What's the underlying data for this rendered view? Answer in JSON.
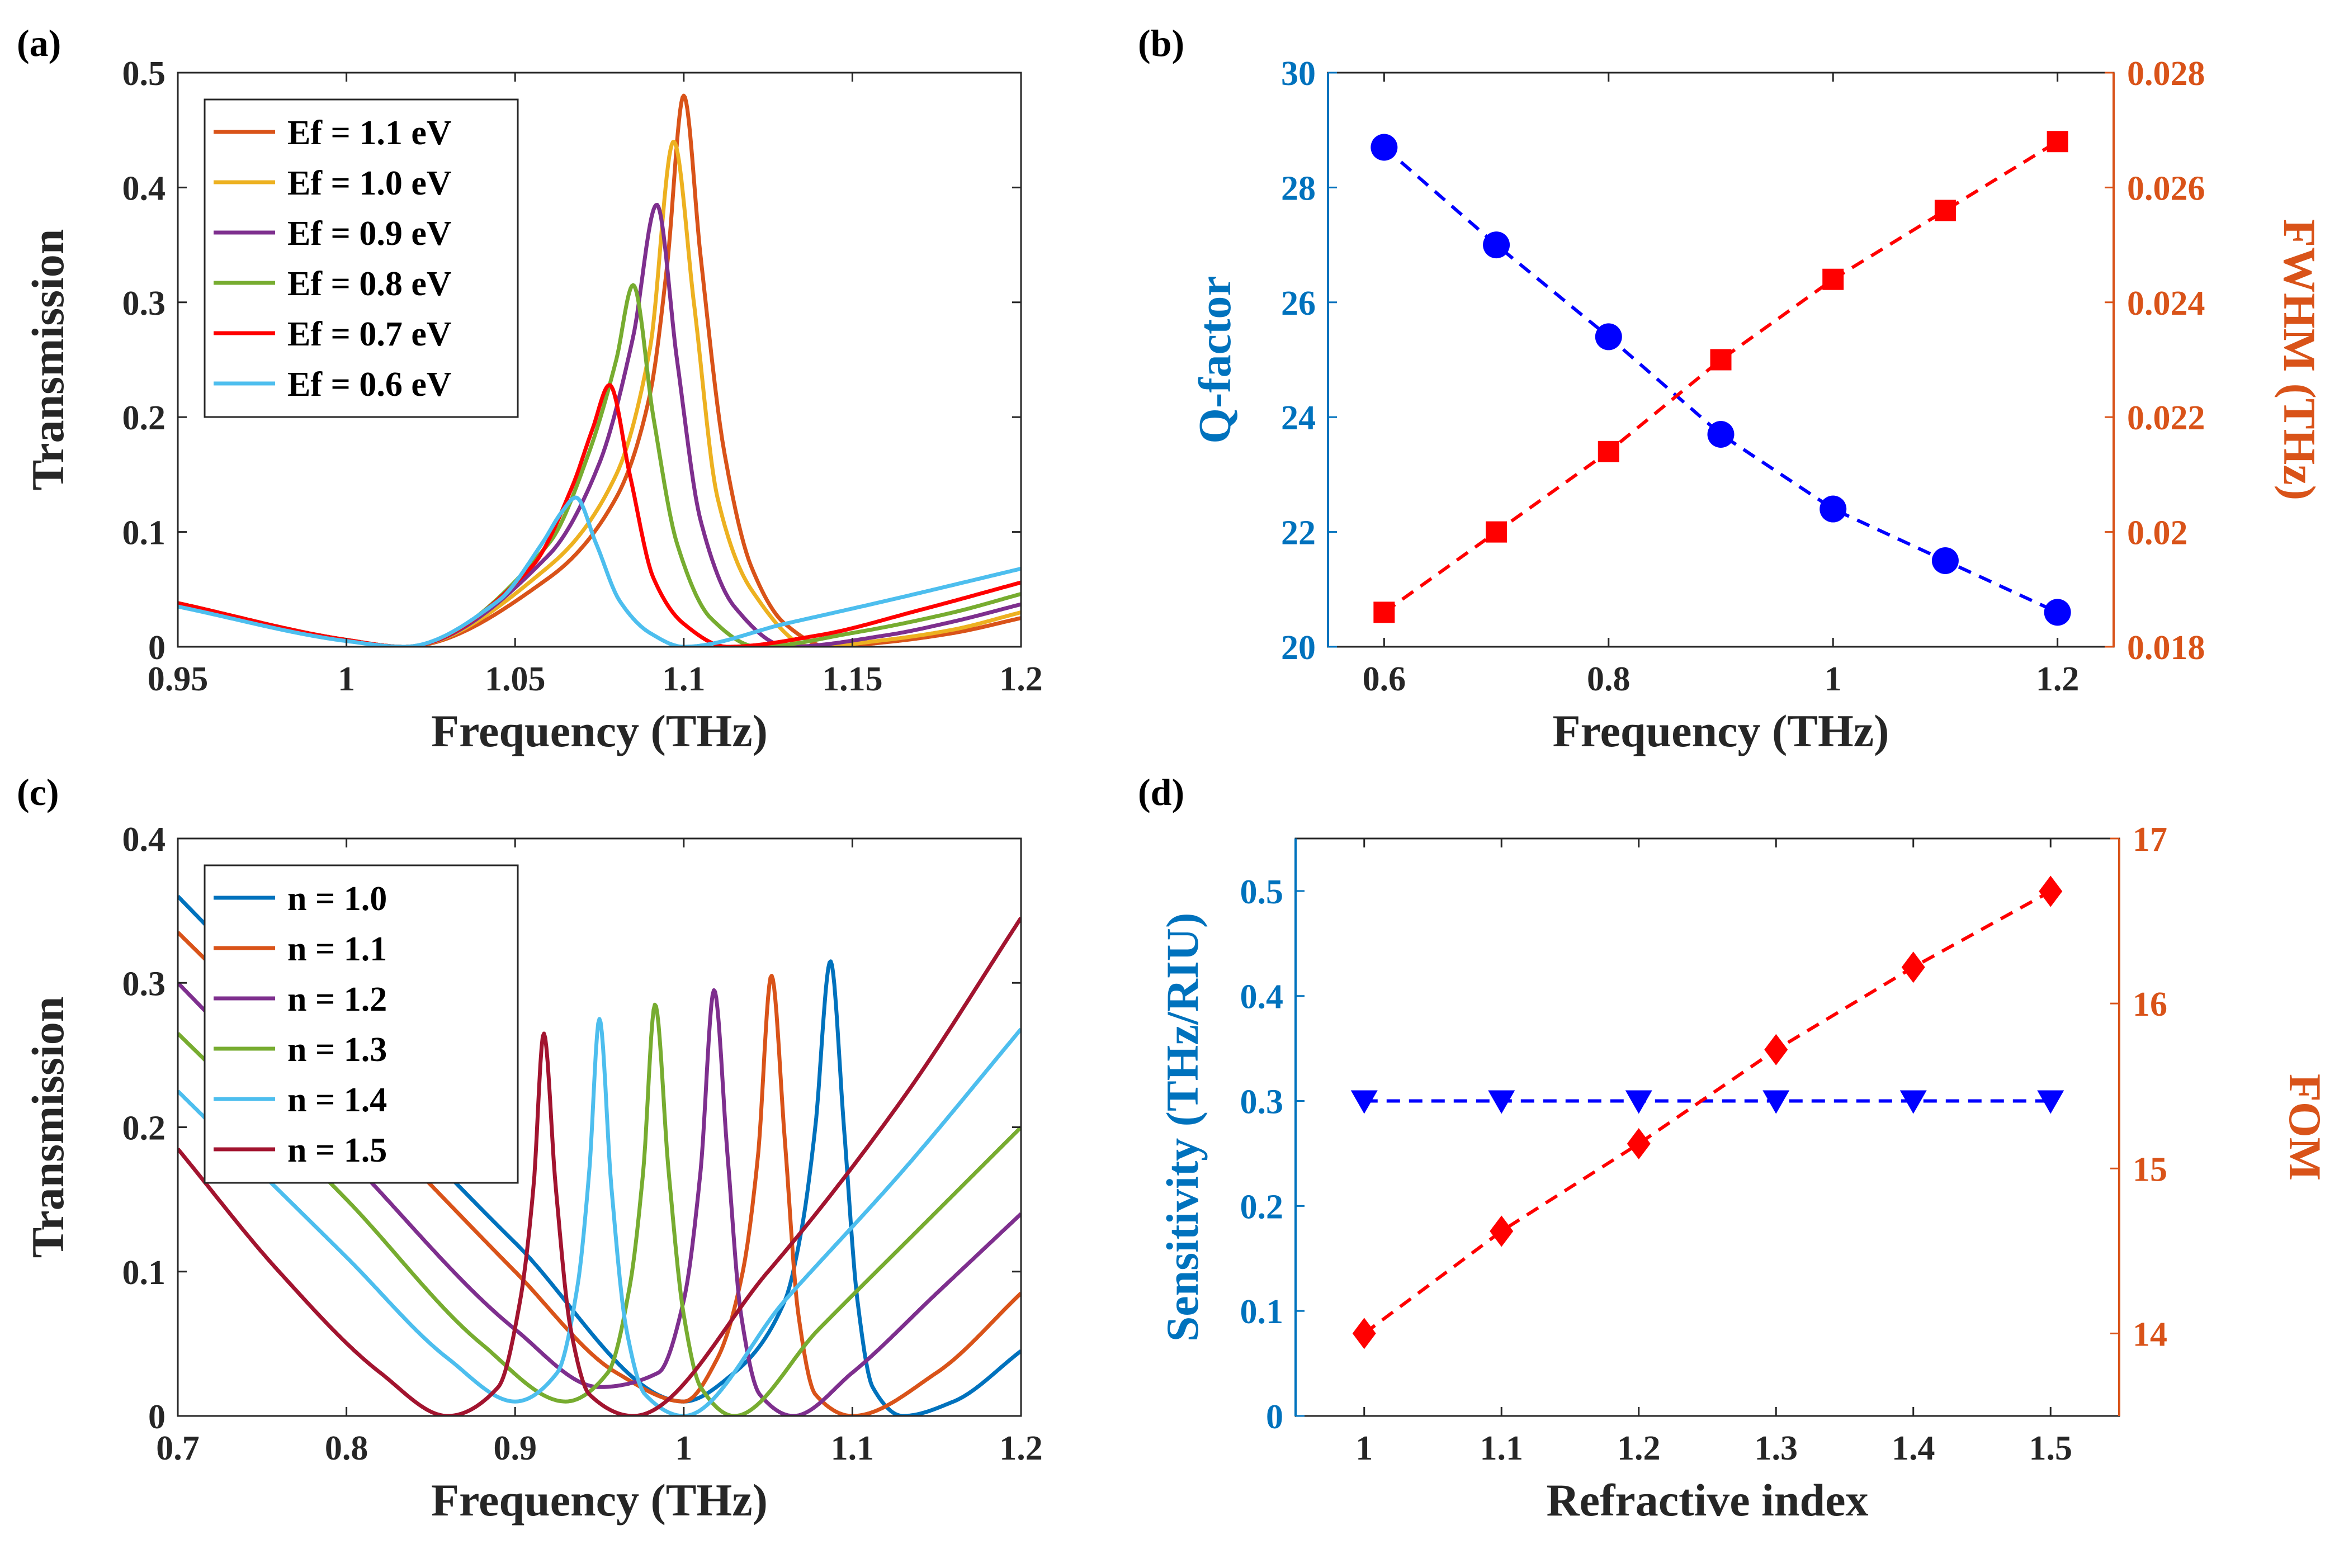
{
  "chart_data": [
    {
      "panel": "(a)",
      "type": "line",
      "xlabel": "Frequency (THz)",
      "ylabel": "Transmission",
      "xlim": [
        0.95,
        1.2
      ],
      "ylim": [
        0,
        0.5
      ],
      "xticks": [
        0.95,
        1,
        1.05,
        1.1,
        1.15,
        1.2
      ],
      "xtick_labels": [
        "0.95",
        "1",
        "1.05",
        "1.1",
        "1.15",
        "1.2"
      ],
      "yticks": [
        0,
        0.1,
        0.2,
        0.3,
        0.4,
        0.5
      ],
      "ytick_labels": [
        "0",
        "0.1",
        "0.2",
        "0.3",
        "0.4",
        "0.5"
      ],
      "legend_position": "top-left",
      "series": [
        {
          "name": "Ef = 1.1 eV",
          "color": "#D95319",
          "resonance_THz": 1.1,
          "peak": 0.48,
          "zero_THz": 1.143,
          "x": [
            0.95,
            1.0,
            1.017,
            1.06,
            1.08,
            1.09,
            1.095,
            1.1,
            1.105,
            1.112,
            1.12,
            1.13,
            1.143,
            1.16,
            1.18,
            1.2
          ],
          "y": [
            0.038,
            0.006,
            0.0,
            0.06,
            0.13,
            0.22,
            0.33,
            0.48,
            0.34,
            0.17,
            0.07,
            0.02,
            0.0,
            0.004,
            0.012,
            0.025
          ]
        },
        {
          "name": "Ef = 1.0 eV",
          "color": "#EDB120",
          "resonance_THz": 1.097,
          "peak": 0.44,
          "zero_THz": 1.138,
          "x": [
            0.95,
            1.0,
            1.017,
            1.06,
            1.08,
            1.09,
            1.097,
            1.103,
            1.11,
            1.12,
            1.138,
            1.16,
            1.18,
            1.2
          ],
          "y": [
            0.038,
            0.006,
            0.0,
            0.07,
            0.15,
            0.26,
            0.44,
            0.3,
            0.13,
            0.05,
            0.0,
            0.006,
            0.015,
            0.03
          ]
        },
        {
          "name": "Ef = 0.9 eV",
          "color": "#7E2F8E",
          "resonance_THz": 1.092,
          "peak": 0.385,
          "zero_THz": 1.131,
          "x": [
            0.95,
            1.0,
            1.017,
            1.06,
            1.075,
            1.085,
            1.092,
            1.098,
            1.105,
            1.115,
            1.131,
            1.16,
            1.18,
            1.2
          ],
          "y": [
            0.038,
            0.006,
            0.0,
            0.08,
            0.16,
            0.27,
            0.385,
            0.25,
            0.11,
            0.035,
            0.0,
            0.01,
            0.022,
            0.037
          ]
        },
        {
          "name": "Ef = 0.8 eV",
          "color": "#77AC30",
          "resonance_THz": 1.085,
          "peak": 0.315,
          "zero_THz": 1.122,
          "x": [
            0.95,
            1.0,
            1.017,
            1.06,
            1.072,
            1.08,
            1.085,
            1.091,
            1.098,
            1.108,
            1.122,
            1.15,
            1.18,
            1.2
          ],
          "y": [
            0.038,
            0.006,
            0.0,
            0.09,
            0.17,
            0.25,
            0.315,
            0.2,
            0.09,
            0.025,
            0.0,
            0.012,
            0.03,
            0.046
          ]
        },
        {
          "name": "Ef = 0.7 eV",
          "color": "#FF0000",
          "resonance_THz": 1.078,
          "peak": 0.228,
          "zero_THz": 1.113,
          "x": [
            0.95,
            1.0,
            1.017,
            1.055,
            1.067,
            1.073,
            1.078,
            1.084,
            1.091,
            1.1,
            1.113,
            1.14,
            1.17,
            1.2
          ],
          "y": [
            0.038,
            0.006,
            0.0,
            0.07,
            0.14,
            0.19,
            0.228,
            0.15,
            0.06,
            0.02,
            0.0,
            0.01,
            0.032,
            0.056
          ]
        },
        {
          "name": "Ef = 0.6 eV",
          "color": "#4DBEEE",
          "resonance_THz": 1.068,
          "peak": 0.13,
          "zero_THz": 1.1,
          "x": [
            0.95,
            1.0,
            1.017,
            1.045,
            1.058,
            1.064,
            1.068,
            1.074,
            1.081,
            1.09,
            1.1,
            1.13,
            1.16,
            1.2
          ],
          "y": [
            0.035,
            0.005,
            0.0,
            0.04,
            0.09,
            0.118,
            0.13,
            0.09,
            0.04,
            0.012,
            0.0,
            0.02,
            0.04,
            0.068
          ]
        }
      ]
    },
    {
      "panel": "(b)",
      "type": "scatter",
      "xlabel": "Frequency (THz)",
      "ylabel": "Q-factor",
      "ylabel_right": "FWHM (THz)",
      "xlim": [
        0.55,
        1.25
      ],
      "ylim": [
        20,
        30
      ],
      "ylim_right": [
        0.018,
        0.028
      ],
      "xticks": [
        0.6,
        0.8,
        1,
        1.2
      ],
      "xtick_labels": [
        "0.6",
        "0.8",
        "1",
        "1.2"
      ],
      "yticks": [
        20,
        22,
        24,
        26,
        28,
        30
      ],
      "ytick_labels": [
        "20",
        "22",
        "24",
        "26",
        "28",
        "30"
      ],
      "yticks_right": [
        0.018,
        0.02,
        0.022,
        0.024,
        0.026,
        0.028
      ],
      "ytick_labels_right": [
        "0.018",
        "0.02",
        "0.022",
        "0.024",
        "0.026",
        "0.028"
      ],
      "left_axis_color": "#0072BD",
      "right_axis_color": "#D95319",
      "x": [
        0.6,
        0.7,
        0.8,
        0.9,
        1.0,
        1.1,
        1.2
      ],
      "series": [
        {
          "name": "Q-factor",
          "axis": "left",
          "marker": "circle",
          "color": "#0000FF",
          "values": [
            28.7,
            27.0,
            25.4,
            23.7,
            22.4,
            21.5,
            20.6
          ]
        },
        {
          "name": "FWHM",
          "axis": "right",
          "marker": "square",
          "color": "#FF0000",
          "values": [
            0.0186,
            0.02,
            0.0214,
            0.023,
            0.0244,
            0.0256,
            0.0268
          ]
        }
      ]
    },
    {
      "panel": "(c)",
      "type": "line",
      "xlabel": "Frequency (THz)",
      "ylabel": "Transmission",
      "xlim": [
        0.7,
        1.2
      ],
      "ylim": [
        0,
        0.4
      ],
      "xticks": [
        0.7,
        0.8,
        0.9,
        1,
        1.1,
        1.2
      ],
      "xtick_labels": [
        "0.7",
        "0.8",
        "0.9",
        "1",
        "1.1",
        "1.2"
      ],
      "yticks": [
        0,
        0.1,
        0.2,
        0.3,
        0.4
      ],
      "ytick_labels": [
        "0",
        "0.1",
        "0.2",
        "0.3",
        "0.4"
      ],
      "legend_position": "top-left",
      "series": [
        {
          "name": "n = 1.0",
          "color": "#0072BD",
          "resonance_THz": 1.087,
          "peak": 0.315,
          "x": [
            0.7,
            0.8,
            0.9,
            1.0,
            1.03,
            1.06,
            1.07,
            1.078,
            1.087,
            1.095,
            1.103,
            1.112,
            1.13,
            1.16,
            1.2
          ],
          "y": [
            0.36,
            0.24,
            0.12,
            0.01,
            0.03,
            0.08,
            0.13,
            0.2,
            0.315,
            0.2,
            0.08,
            0.02,
            0.0,
            0.01,
            0.045
          ]
        },
        {
          "name": "n = 1.1",
          "color": "#D95319",
          "resonance_THz": 1.052,
          "peak": 0.305,
          "x": [
            0.7,
            0.8,
            0.9,
            0.96,
            1.0,
            1.02,
            1.035,
            1.044,
            1.052,
            1.06,
            1.068,
            1.078,
            1.1,
            1.15,
            1.2
          ],
          "y": [
            0.335,
            0.22,
            0.1,
            0.03,
            0.01,
            0.04,
            0.1,
            0.18,
            0.305,
            0.19,
            0.07,
            0.015,
            0.0,
            0.03,
            0.085
          ]
        },
        {
          "name": "n = 1.2",
          "color": "#7E2F8E",
          "resonance_THz": 1.018,
          "peak": 0.295,
          "x": [
            0.7,
            0.8,
            0.9,
            0.95,
            0.985,
            1.0,
            1.01,
            1.018,
            1.026,
            1.034,
            1.045,
            1.065,
            1.1,
            1.15,
            1.2
          ],
          "y": [
            0.3,
            0.18,
            0.06,
            0.02,
            0.03,
            0.08,
            0.17,
            0.295,
            0.18,
            0.07,
            0.015,
            0.0,
            0.03,
            0.085,
            0.14
          ]
        },
        {
          "name": "n = 1.3",
          "color": "#77AC30",
          "resonance_THz": 0.983,
          "peak": 0.285,
          "x": [
            0.7,
            0.8,
            0.88,
            0.93,
            0.955,
            0.968,
            0.976,
            0.983,
            0.991,
            1.0,
            1.01,
            1.03,
            1.08,
            1.14,
            1.2
          ],
          "y": [
            0.265,
            0.15,
            0.05,
            0.01,
            0.03,
            0.09,
            0.17,
            0.285,
            0.17,
            0.07,
            0.02,
            0.0,
            0.06,
            0.13,
            0.2
          ]
        },
        {
          "name": "n = 1.4",
          "color": "#4DBEEE",
          "resonance_THz": 0.95,
          "peak": 0.275,
          "x": [
            0.7,
            0.8,
            0.86,
            0.9,
            0.925,
            0.937,
            0.944,
            0.95,
            0.957,
            0.966,
            0.977,
            1.0,
            1.06,
            1.13,
            1.2
          ],
          "y": [
            0.225,
            0.11,
            0.04,
            0.01,
            0.03,
            0.09,
            0.17,
            0.275,
            0.16,
            0.06,
            0.015,
            0.0,
            0.08,
            0.17,
            0.268
          ]
        },
        {
          "name": "n = 1.5",
          "color": "#A2142F",
          "resonance_THz": 0.917,
          "peak": 0.265,
          "x": [
            0.7,
            0.76,
            0.82,
            0.86,
            0.89,
            0.903,
            0.911,
            0.917,
            0.924,
            0.933,
            0.944,
            0.97,
            1.05,
            1.13,
            1.2
          ],
          "y": [
            0.185,
            0.1,
            0.03,
            0.0,
            0.02,
            0.08,
            0.16,
            0.265,
            0.16,
            0.06,
            0.015,
            0.0,
            0.1,
            0.22,
            0.345
          ]
        }
      ]
    },
    {
      "panel": "(d)",
      "type": "scatter",
      "xlabel": "Refractive index",
      "ylabel": "Sensitivity (THz/RIU)",
      "ylabel_right": "FOM",
      "xlim": [
        0.95,
        1.55
      ],
      "ylim": [
        0,
        0.55
      ],
      "ylim_right": [
        13.5,
        17
      ],
      "xticks": [
        1,
        1.1,
        1.2,
        1.3,
        1.4,
        1.5
      ],
      "xtick_labels": [
        "1",
        "1.1",
        "1.2",
        "1.3",
        "1.4",
        "1.5"
      ],
      "yticks": [
        0,
        0.1,
        0.2,
        0.3,
        0.4,
        0.5
      ],
      "ytick_labels": [
        "0",
        "0.1",
        "0.2",
        "0.3",
        "0.4",
        "0.5"
      ],
      "yticks_right": [
        14,
        15,
        16,
        17
      ],
      "ytick_labels_right": [
        "14",
        "15",
        "16",
        "17"
      ],
      "left_axis_color": "#0072BD",
      "right_axis_color": "#D95319",
      "x": [
        1.0,
        1.1,
        1.2,
        1.3,
        1.4,
        1.5
      ],
      "series": [
        {
          "name": "Sensitivity",
          "axis": "left",
          "marker": "triangle-down",
          "color": "#0000FF",
          "values": [
            0.3,
            0.3,
            0.3,
            0.3,
            0.3,
            0.3
          ]
        },
        {
          "name": "FOM",
          "axis": "right",
          "marker": "diamond",
          "color": "#FF0000",
          "values": [
            14.0,
            14.62,
            15.15,
            15.72,
            16.22,
            16.68
          ]
        }
      ]
    }
  ]
}
